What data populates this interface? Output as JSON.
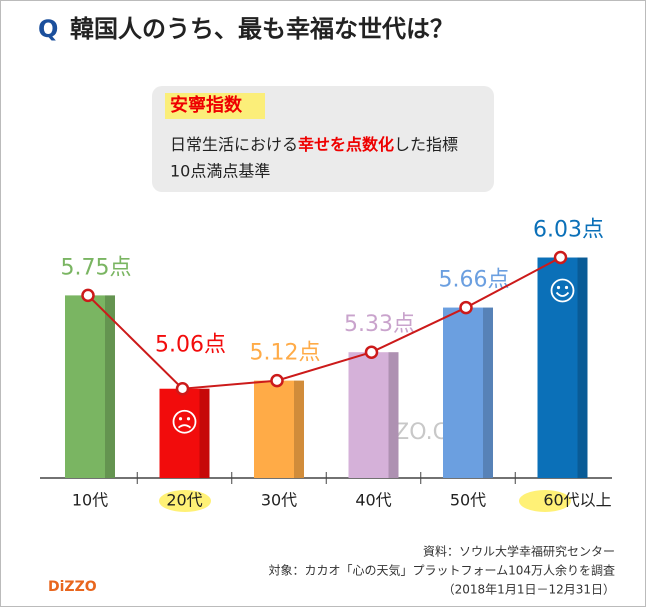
{
  "title_q": "Q",
  "title": "韓国人のうち、最も幸福な世代は？",
  "note": {
    "heading": "安寧指数",
    "line1_a": "日常生活における",
    "line1_b": "幸せを点数化",
    "line1_c": "した指標",
    "line2": "10点満点基準"
  },
  "chart_data": {
    "type": "bar",
    "categories": [
      "10代",
      "20代",
      "30代",
      "40代",
      "50代",
      "60代以上"
    ],
    "values": [
      5.75,
      5.06,
      5.12,
      5.33,
      5.66,
      6.03
    ],
    "value_labels": [
      "5.75点",
      "5.06点",
      "5.12点",
      "5.33点",
      "5.66点",
      "6.03点"
    ],
    "colors": [
      "#7ab562",
      "#f20c0c",
      "#ffab47",
      "#d5b1d9",
      "#6b9fe0",
      "#0b70b8"
    ],
    "line_color": "#cc1a1a",
    "ylim": [
      4.4,
      6.3
    ]
  },
  "watermark": "DIZZO.COM",
  "source": [
    "資料：ソウル大学幸福研究センター",
    "対象：カカオ「心の天気」プラットフォーム104万人余りを調査",
    "（2018年1月1日－12月31日）"
  ],
  "logo": "DiZZO"
}
